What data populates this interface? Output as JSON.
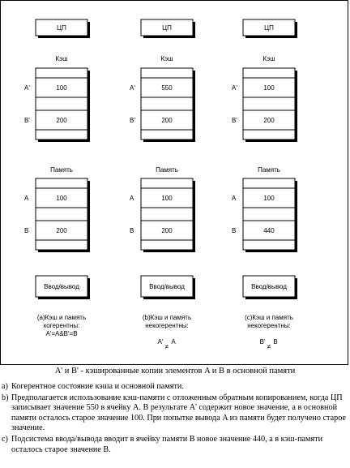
{
  "columns": [
    {
      "cpu": "ЦП",
      "cache_label": "Кэш",
      "cache_rows": [
        {
          "name": "A'",
          "value": "100"
        },
        {
          "name": "B'",
          "value": "200"
        }
      ],
      "mem_label": "Память",
      "mem_rows": [
        {
          "name": "A",
          "value": "100"
        },
        {
          "name": "B",
          "value": "200"
        }
      ],
      "io": "Ввод/вывод",
      "caption": [
        "(a)Кэш и память",
        "когерентны:",
        "A'=A&B'=B"
      ],
      "relation": {
        "type": "equal-text"
      }
    },
    {
      "cpu": "ЦП",
      "cache_label": "Кэш",
      "cache_rows": [
        {
          "name": "A'",
          "value": "550"
        },
        {
          "name": "B'",
          "value": "200"
        }
      ],
      "mem_label": "Память",
      "mem_rows": [
        {
          "name": "A",
          "value": "100"
        },
        {
          "name": "B",
          "value": "200"
        }
      ],
      "io": "Ввод/вывод",
      "caption": [
        "(b)Кэш и память",
        "некогерентны:"
      ],
      "relation": {
        "left": "A'",
        "right": "A",
        "symbol": "≠"
      }
    },
    {
      "cpu": "ЦП",
      "cache_label": "Кэш",
      "cache_rows": [
        {
          "name": "A'",
          "value": "100"
        },
        {
          "name": "B'",
          "value": "200"
        }
      ],
      "mem_label": "Память",
      "mem_rows": [
        {
          "name": "A",
          "value": "100"
        },
        {
          "name": "B",
          "value": "440"
        }
      ],
      "io": "Ввод/вывод",
      "caption": [
        "(c)Кэш и память",
        "некогерентны:"
      ],
      "relation": {
        "left": "B'",
        "right": "B",
        "symbol": "≠"
      }
    }
  ],
  "legend": "A' и B' - кэшированные копии элементов A и B в  основной памяти",
  "notes": [
    {
      "marker": "a)",
      "text": "Когерентное состояние кэша и основной памяти."
    },
    {
      "marker": "b)",
      "text": "Предполагается использование кэш-памяти с отложенным обратным копированием, когда ЦП записывает значение 550 в ячейку A. В результате A' содержит новое значение,  а в основной памяти осталось старое значение 100. При попытке вывода A из памяти будет получено старое значение."
    },
    {
      "marker": "c)",
      "text": "Подсистема ввода/вывода вводит в ячейку памяти B новое значение 440, а в кэш-памяти осталось старое значение B."
    }
  ]
}
